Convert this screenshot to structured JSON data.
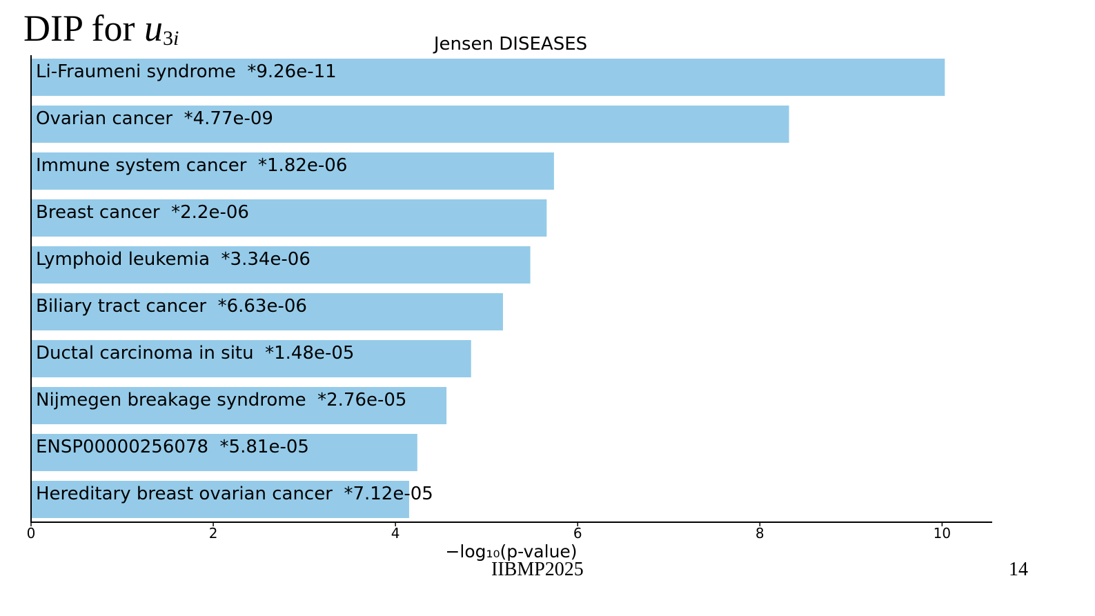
{
  "slide": {
    "title_prefix": "DIP for ",
    "title_var": "u",
    "title_sub_num": "3",
    "title_sub_var": "i",
    "footer_center": "IIBMP2025",
    "page_number": "14"
  },
  "chart_data": {
    "type": "bar",
    "orientation": "horizontal",
    "title": "Jensen DISEASES",
    "xlabel": "−log₁₀(p-value)",
    "ylabel": "",
    "xlim": [
      0,
      10.55
    ],
    "xticks": [
      0,
      2,
      4,
      6,
      8,
      10
    ],
    "bar_color": "#95cbe9",
    "grid": false,
    "categories": [
      "Li-Fraumeni syndrome",
      "Ovarian cancer",
      "Immune system cancer",
      "Breast cancer",
      "Lymphoid leukemia",
      "Biliary tract cancer",
      "Ductal carcinoma in situ",
      "Nijmegen breakage syndrome",
      "ENSP00000256078",
      "Hereditary breast ovarian cancer"
    ],
    "pvalue_labels": [
      "*9.26e-11",
      "*4.77e-09",
      "*1.82e-06",
      "*2.2e-06",
      "*3.34e-06",
      "*6.63e-06",
      "*1.48e-05",
      "*2.76e-05",
      "*5.81e-05",
      "*7.12e-05"
    ],
    "values": [
      10.03,
      8.32,
      5.74,
      5.66,
      5.48,
      5.18,
      4.83,
      4.56,
      4.24,
      4.15
    ]
  }
}
